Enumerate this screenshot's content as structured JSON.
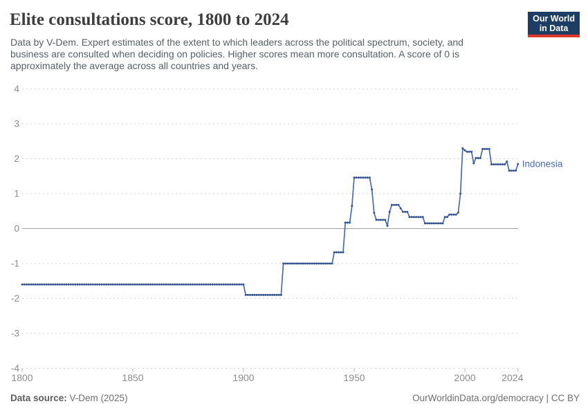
{
  "header": {
    "title": "Elite consultations score, 1800 to 2024",
    "subtitle_lines": [
      "Data by V-Dem. Expert estimates of the extent to which leaders across the political spectrum, society, and",
      "business are consulted when deciding on policies. Higher scores mean more consultation. A score of 0 is",
      "approximately the average across all countries and years."
    ],
    "logo": {
      "line1": "Our World",
      "line2": "in Data",
      "bg_color": "#1d3d63",
      "accent_color": "#e0362b"
    }
  },
  "chart_data": {
    "type": "line",
    "title": "Elite consultations score, 1800 to 2024",
    "xlabel": "",
    "ylabel": "",
    "xlim": [
      1800,
      2024
    ],
    "ylim": [
      -4,
      4
    ],
    "xticks": [
      1800,
      1850,
      1900,
      1950,
      2000,
      2024
    ],
    "yticks": [
      4,
      3,
      2,
      1,
      0,
      -1,
      -2,
      -3,
      -4
    ],
    "grid": "horizontal-dashed, solid zero line",
    "legend_position": "end-of-line label",
    "series": [
      {
        "name": "Indonesia",
        "color": "#4a6ba8",
        "marker_color": "#33548e",
        "runs_format": "[startYear, endYear, value] (value constant over run, yearly points)",
        "runs": [
          [
            1800,
            1900,
            -1.6
          ],
          [
            1901,
            1917,
            -1.9
          ],
          [
            1918,
            1940,
            -1.0
          ],
          [
            1941,
            1945,
            -0.68
          ],
          [
            1946,
            1948,
            0.17
          ],
          [
            1949,
            1949,
            0.65
          ],
          [
            1950,
            1957,
            1.46
          ],
          [
            1958,
            1958,
            1.12
          ],
          [
            1959,
            1959,
            0.45
          ],
          [
            1960,
            1964,
            0.25
          ],
          [
            1965,
            1965,
            0.08
          ],
          [
            1966,
            1966,
            0.48
          ],
          [
            1967,
            1970,
            0.68
          ],
          [
            1971,
            1971,
            0.58
          ],
          [
            1972,
            1974,
            0.48
          ],
          [
            1975,
            1981,
            0.33
          ],
          [
            1982,
            1990,
            0.15
          ],
          [
            1991,
            1992,
            0.33
          ],
          [
            1993,
            1996,
            0.4
          ],
          [
            1997,
            1997,
            0.46
          ],
          [
            1998,
            1998,
            1.0
          ],
          [
            1999,
            1999,
            2.3
          ],
          [
            2000,
            2000,
            2.24
          ],
          [
            2001,
            2003,
            2.2
          ],
          [
            2004,
            2004,
            1.87
          ],
          [
            2005,
            2007,
            2.02
          ],
          [
            2008,
            2011,
            2.28
          ],
          [
            2012,
            2018,
            1.84
          ],
          [
            2019,
            2019,
            1.92
          ],
          [
            2020,
            2023,
            1.66
          ],
          [
            2024,
            2024,
            1.85
          ]
        ]
      }
    ],
    "entity_label": "Indonesia",
    "colors": {
      "gridline": "#d6d6d6",
      "zero_line": "#9e9e9e",
      "axis_text": "#8c8c8c"
    }
  },
  "footer": {
    "source_label": "Data source:",
    "source_value": " V-Dem (2025)",
    "right_text": "OurWorldinData.org/democracy | CC BY"
  }
}
